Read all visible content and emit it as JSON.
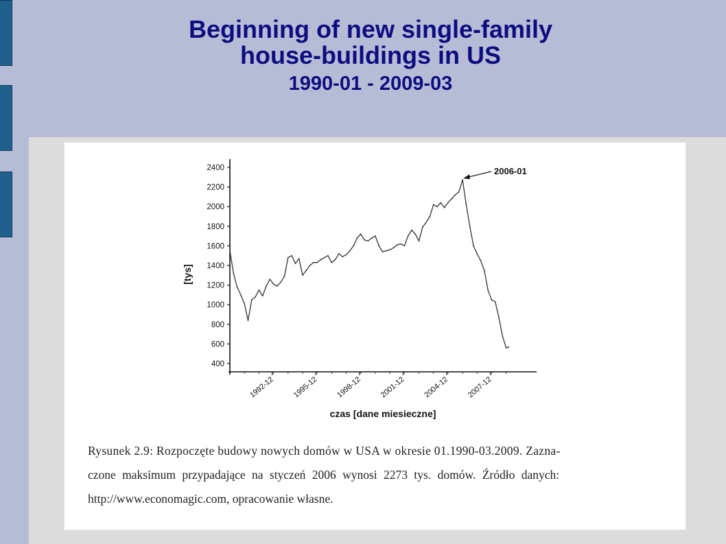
{
  "slide": {
    "title_line1": "Beginning of new single-family",
    "title_line2": "house-buildings in  US",
    "subtitle": "1990-01 - 2009-03"
  },
  "caption": {
    "line1": "Rysunek 2.9: Rozpoczęte budowy nowych domów w USA w okresie 01.1990-03.2009. Zazna-",
    "line2": "czone maksimum przypadające na styczeń 2006 wynosi 2273 tys. domów. Źródło danych:",
    "line3": "http://www.economagic.com, opracowanie własne."
  },
  "chart_data": {
    "type": "line",
    "ylabel": "[tys]",
    "xlabel": "czas [dane miesieczne]",
    "yticks": [
      400,
      600,
      800,
      1000,
      1200,
      1400,
      1600,
      1800,
      2000,
      2200,
      2400
    ],
    "ylim": [
      300,
      2450
    ],
    "xlim": [
      1990.0,
      2010.15
    ],
    "xticks": [
      "1992-12",
      "1995-12",
      "1998-12",
      "2001-12",
      "2004-12",
      "2007-12"
    ],
    "annotation": {
      "text": "2006-01",
      "x": "2006-01",
      "y": 2273
    },
    "series": [
      {
        "x": [
          "1990-01",
          "1990-04",
          "1990-07",
          "1990-10",
          "1991-01",
          "1991-04",
          "1991-07",
          "1991-10",
          "1992-01",
          "1992-04",
          "1992-07",
          "1992-10",
          "1993-01",
          "1993-04",
          "1993-07",
          "1993-10",
          "1994-01",
          "1994-04",
          "1994-07",
          "1994-10",
          "1995-01",
          "1995-04",
          "1995-07",
          "1995-10",
          "1996-01",
          "1996-04",
          "1996-07",
          "1996-10",
          "1997-01",
          "1997-04",
          "1997-07",
          "1997-10",
          "1998-01",
          "1998-04",
          "1998-07",
          "1998-10",
          "1999-01",
          "1999-04",
          "1999-07",
          "1999-10",
          "2000-01",
          "2000-04",
          "2000-07",
          "2000-10",
          "2001-01",
          "2001-04",
          "2001-07",
          "2001-10",
          "2002-01",
          "2002-04",
          "2002-07",
          "2002-10",
          "2003-01",
          "2003-04",
          "2003-07",
          "2003-10",
          "2004-01",
          "2004-04",
          "2004-07",
          "2004-10",
          "2005-01",
          "2005-04",
          "2005-07",
          "2005-10",
          "2006-01",
          "2006-04",
          "2006-07",
          "2006-10",
          "2007-01",
          "2007-04",
          "2007-07",
          "2007-10",
          "2008-01",
          "2008-04",
          "2008-07",
          "2008-10",
          "2009-01",
          "2009-03"
        ],
        "values": [
          1550,
          1320,
          1180,
          1100,
          1010,
          840,
          1050,
          1080,
          1150,
          1090,
          1190,
          1260,
          1210,
          1190,
          1230,
          1290,
          1480,
          1500,
          1420,
          1470,
          1300,
          1350,
          1400,
          1430,
          1430,
          1460,
          1480,
          1500,
          1430,
          1460,
          1520,
          1490,
          1510,
          1550,
          1600,
          1680,
          1720,
          1660,
          1650,
          1680,
          1700,
          1600,
          1540,
          1550,
          1560,
          1580,
          1610,
          1620,
          1600,
          1700,
          1760,
          1720,
          1650,
          1790,
          1840,
          1900,
          2020,
          2000,
          2040,
          1990,
          2040,
          2080,
          2120,
          2150,
          2273,
          2020,
          1800,
          1600,
          1520,
          1450,
          1350,
          1150,
          1050,
          1030,
          870,
          680,
          560,
          570
        ]
      }
    ]
  }
}
